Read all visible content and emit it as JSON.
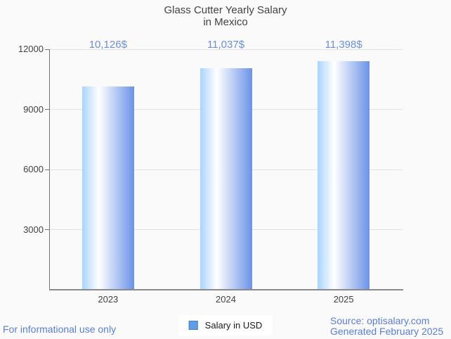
{
  "title_lines": [
    "Glass Cutter Yearly Salary",
    "in Mexico"
  ],
  "chart_data": {
    "type": "bar",
    "title": "Glass Cutter Yearly Salary in Mexico",
    "categories": [
      "2023",
      "2024",
      "2025"
    ],
    "values": [
      10126,
      11037,
      11398
    ],
    "value_labels": [
      "10,126$",
      "11,037$",
      "11,398$"
    ],
    "series_name": "Salary in USD",
    "xlabel": "",
    "ylabel": "",
    "ylim": [
      0,
      12000
    ],
    "y_ticks": [
      3000,
      6000,
      9000,
      12000
    ],
    "grid": true,
    "legend_position": "bottom"
  },
  "legend": {
    "label": "Salary in USD"
  },
  "footer": {
    "left": "For informational use only",
    "source": "Source: optisalary.com",
    "generated": "Generated February 2025"
  },
  "colors": {
    "background": "#fafafa",
    "title_text": "#424242",
    "value_label_text": "#6c8fd9",
    "footer_text": "#5a7dd6",
    "bar_gradient_left": "#aad4fd",
    "bar_gradient_mid": "#ffffff",
    "bar_gradient_right": "#6b92e8",
    "legend_swatch_fill": "#5f9de6",
    "legend_swatch_border": "#4a7dbf",
    "gridline": "#e3e3e3",
    "axis": "#757575"
  }
}
